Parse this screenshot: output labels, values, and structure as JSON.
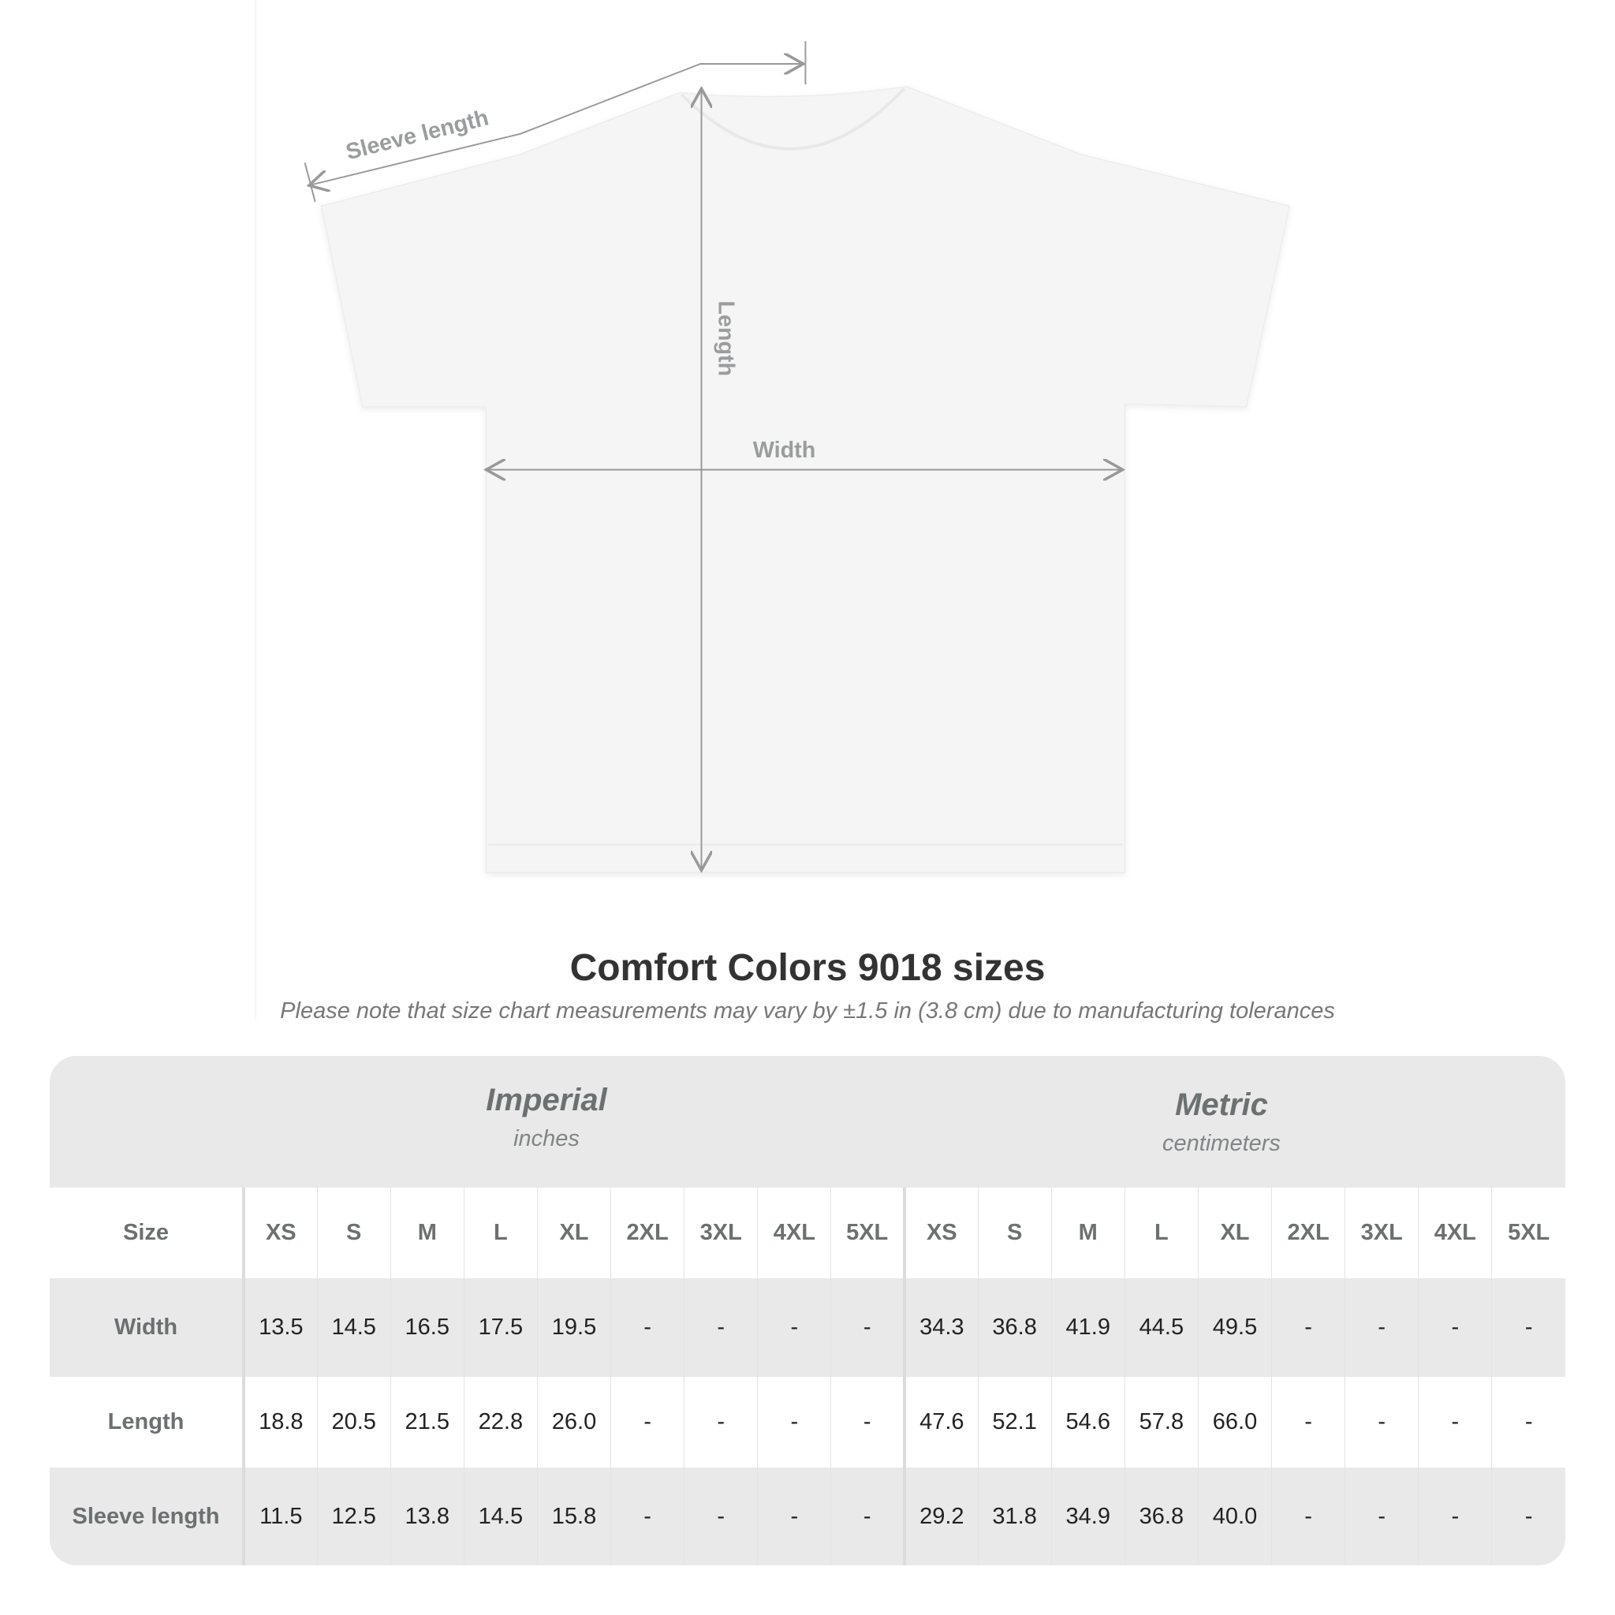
{
  "diagram": {
    "labels": {
      "sleeve": "Sleeve length",
      "length": "Length",
      "width": "Width"
    }
  },
  "title": "Comfort Colors 9018 sizes",
  "subtitle": "Please note that size chart measurements may vary by ±1.5 in (3.8 cm) due to manufacturing tolerances",
  "table": {
    "imperial": {
      "name": "Imperial",
      "unit": "inches"
    },
    "metric": {
      "name": "Metric",
      "unit": "centimeters"
    },
    "size_label": "Size",
    "sizes": [
      "XS",
      "S",
      "M",
      "L",
      "XL",
      "2XL",
      "3XL",
      "4XL",
      "5XL"
    ],
    "rows": [
      {
        "label": "Width",
        "imperial": [
          "13.5",
          "14.5",
          "16.5",
          "17.5",
          "19.5",
          "-",
          "-",
          "-",
          "-"
        ],
        "metric": [
          "34.3",
          "36.8",
          "41.9",
          "44.5",
          "49.5",
          "-",
          "-",
          "-",
          "-"
        ]
      },
      {
        "label": "Length",
        "imperial": [
          "18.8",
          "20.5",
          "21.5",
          "22.8",
          "26.0",
          "-",
          "-",
          "-",
          "-"
        ],
        "metric": [
          "47.6",
          "52.1",
          "54.6",
          "57.8",
          "66.0",
          "-",
          "-",
          "-",
          "-"
        ]
      },
      {
        "label": "Sleeve length",
        "imperial": [
          "11.5",
          "12.5",
          "13.8",
          "14.5",
          "15.8",
          "-",
          "-",
          "-",
          "-"
        ],
        "metric": [
          "29.2",
          "31.8",
          "34.9",
          "36.8",
          "40.0",
          "-",
          "-",
          "-",
          "-"
        ]
      }
    ]
  }
}
